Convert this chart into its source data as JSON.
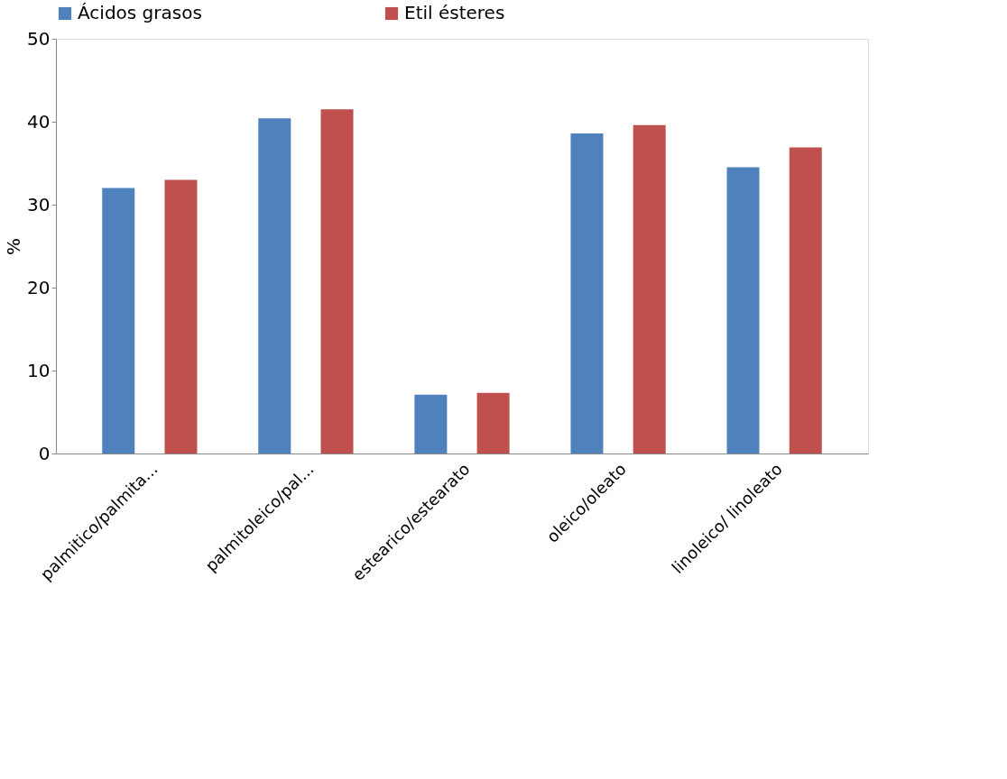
{
  "chart_data": {
    "type": "bar",
    "ylabel": "%",
    "categories": [
      "palmitico/palmita...",
      "palmitoleico/pal...",
      "estearico/estearato",
      "oleico/oleato",
      "linoleico/ linoleato"
    ],
    "series": [
      {
        "name": "Ácidos grasos",
        "color": "#4f81bd",
        "values": [
          32.0,
          40.4,
          7.1,
          38.6,
          34.5
        ]
      },
      {
        "name": "Etil ésteres",
        "color": "#c0504d",
        "values": [
          33.0,
          41.5,
          7.3,
          39.6,
          36.9
        ]
      }
    ],
    "ylim": [
      0,
      50
    ],
    "yticks": [
      0,
      10,
      20,
      30,
      40,
      50
    ],
    "grid": false,
    "legend": "top"
  }
}
